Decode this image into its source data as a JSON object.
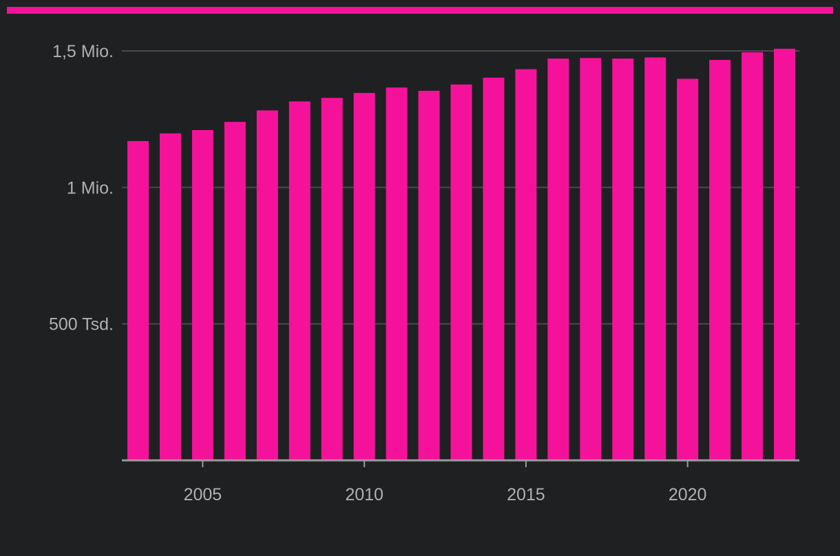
{
  "colors": {
    "background": "#1f2022",
    "accent": "#f5129a",
    "axis": "#9a9a9a",
    "grid": "#4a4a4c",
    "text": "#b0b0b0"
  },
  "chart_data": {
    "type": "bar",
    "title": "",
    "xlabel": "",
    "ylabel": "",
    "categories": [
      2003,
      2004,
      2005,
      2006,
      2007,
      2008,
      2009,
      2010,
      2011,
      2012,
      2013,
      2014,
      2015,
      2016,
      2017,
      2018,
      2019,
      2020,
      2021,
      2022,
      2023
    ],
    "values": [
      1170000,
      1198000,
      1210000,
      1240000,
      1282000,
      1315000,
      1328000,
      1346000,
      1366000,
      1354000,
      1377000,
      1402000,
      1433000,
      1472000,
      1474000,
      1472000,
      1476000,
      1398000,
      1467000,
      1495000,
      1508000
    ],
    "ylim": [
      0,
      1500000
    ],
    "yticks": [
      {
        "value": 500000,
        "label": "500 Tsd."
      },
      {
        "value": 1000000,
        "label": "1 Mio."
      },
      {
        "value": 1500000,
        "label": "1,5 Mio."
      }
    ],
    "xticks": [
      {
        "value": 2005,
        "label": "2005"
      },
      {
        "value": 2010,
        "label": "2010"
      },
      {
        "value": 2015,
        "label": "2015"
      },
      {
        "value": 2020,
        "label": "2020"
      }
    ],
    "grid": true,
    "legend": "none"
  }
}
